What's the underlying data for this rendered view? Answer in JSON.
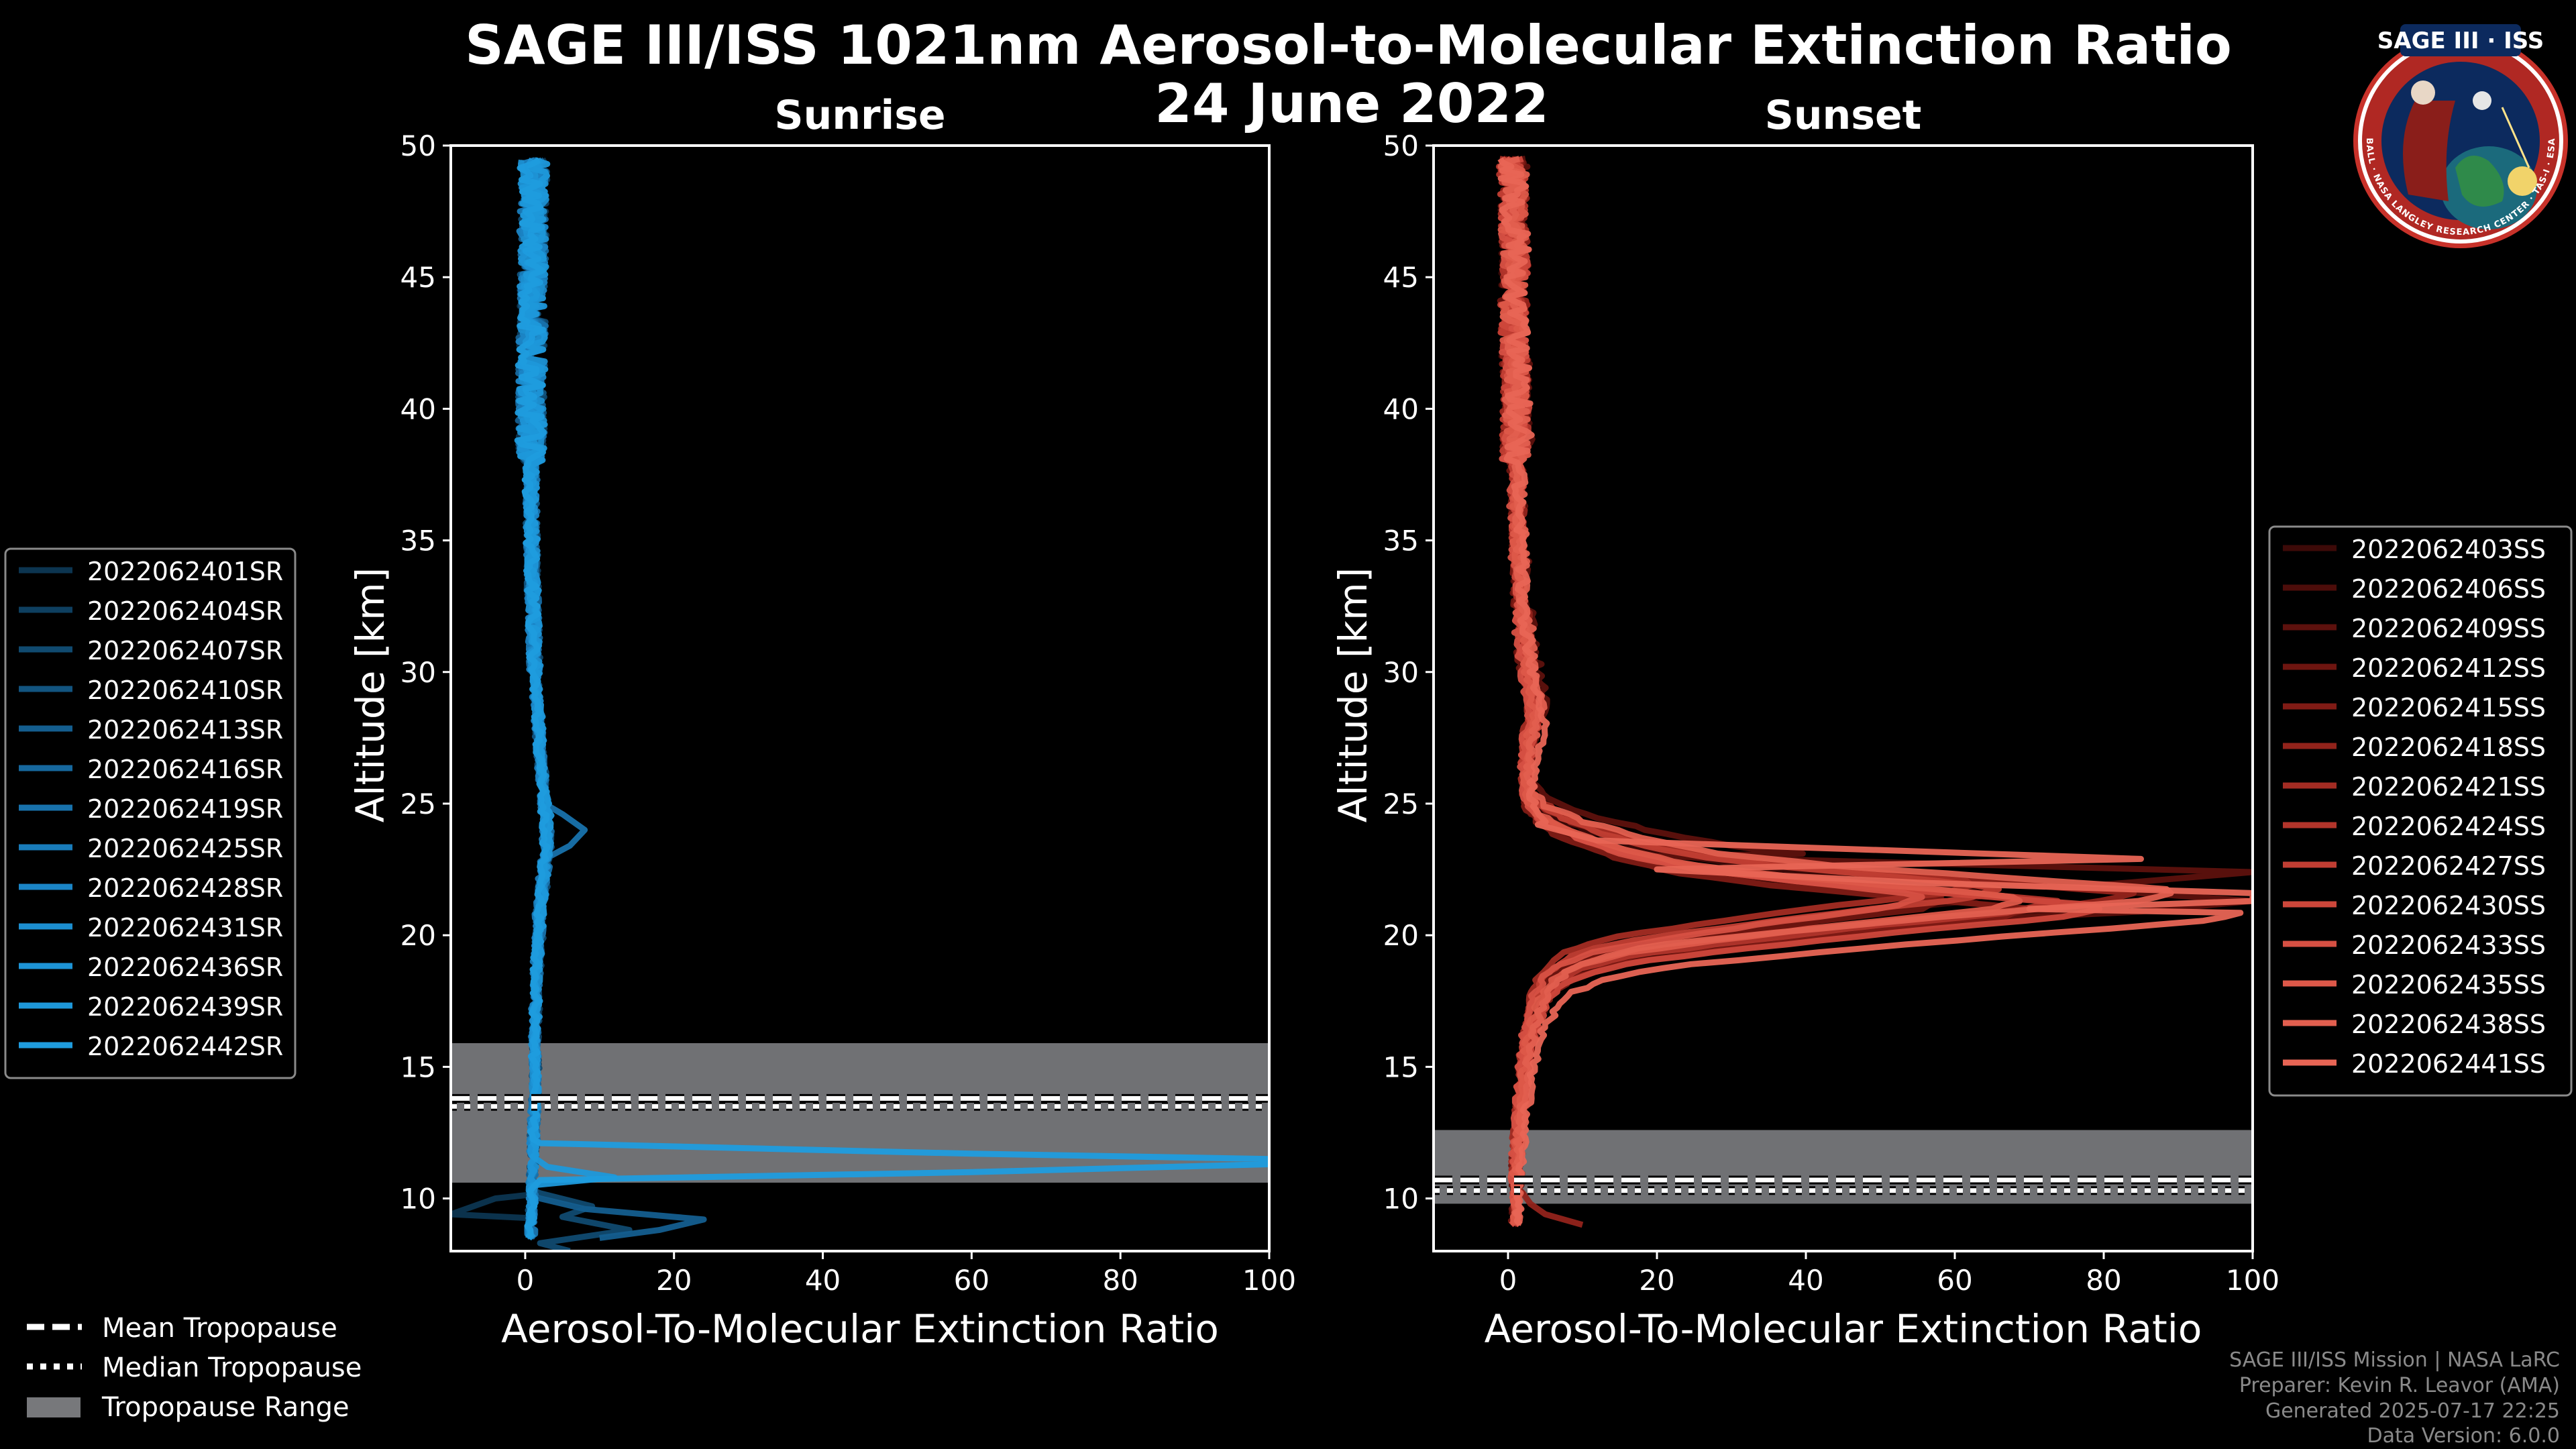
{
  "figure": {
    "title": "SAGE III/ISS 1021nm Aerosol-to-Molecular Extinction Ratio",
    "date": "24 June 2022",
    "logo": {
      "text": "SAGE III · ISS",
      "ring_text": "BALL · NASA LANGLEY RESEARCH CENTER · TAS-I · ESA"
    },
    "credits": [
      "SAGE III/ISS Mission | NASA LaRC",
      "Preparer: Kevin R. Leavor (AMA)",
      "Generated 2025-07-17 22:25",
      "Data Version: 6.0.0"
    ]
  },
  "tropopause_legend": [
    {
      "label": "Mean Tropopause",
      "style": "dashed"
    },
    {
      "label": "Median Tropopause",
      "style": "dotted"
    },
    {
      "label": "Tropopause Range",
      "style": "patch"
    }
  ],
  "chart_data": [
    {
      "type": "line",
      "title": "Sunrise",
      "xlabel": "Aerosol-To-Molecular Extinction Ratio",
      "ylabel": "Altitude [km]",
      "xlim": [
        -10,
        100
      ],
      "ylim": [
        8,
        50
      ],
      "xticks": [
        0,
        20,
        40,
        60,
        80,
        100
      ],
      "yticks": [
        10,
        15,
        20,
        25,
        30,
        35,
        40,
        45,
        50
      ],
      "tropopause": {
        "mean": 13.8,
        "median": 13.5,
        "range": [
          10.6,
          15.9
        ]
      },
      "base_color": "#1f8dd6",
      "profile_shape": {
        "altitude": [
          8.5,
          10,
          11,
          12,
          13,
          14,
          16,
          18,
          20,
          21,
          22,
          23,
          24,
          25,
          27,
          30,
          33,
          36,
          40,
          43,
          46,
          49.5
        ],
        "ratio": [
          0.8,
          0.9,
          1.0,
          1.1,
          1.2,
          1.3,
          1.3,
          1.5,
          1.8,
          2.0,
          2.4,
          2.8,
          3.0,
          2.6,
          2.0,
          1.3,
          1.0,
          0.8,
          0.8,
          0.9,
          1.0,
          1.2
        ]
      },
      "series": [
        {
          "name": "2022062401SR",
          "color": "#0c3550"
        },
        {
          "name": "2022062404SR",
          "color": "#0e3f60"
        },
        {
          "name": "2022062407SR",
          "color": "#104a70"
        },
        {
          "name": "2022062410SR",
          "color": "#12547f"
        },
        {
          "name": "2022062413SR",
          "color": "#145e8f"
        },
        {
          "name": "2022062416SR",
          "color": "#16689e"
        },
        {
          "name": "2022062419SR",
          "color": "#1872ac"
        },
        {
          "name": "2022062425SR",
          "color": "#197cba"
        },
        {
          "name": "2022062428SR",
          "color": "#1b85c6"
        },
        {
          "name": "2022062431SR",
          "color": "#1c8ecf"
        },
        {
          "name": "2022062436SR",
          "color": "#1d94d6"
        },
        {
          "name": "2022062439SR",
          "color": "#1e98da"
        },
        {
          "name": "2022062442SR",
          "color": "#1f9cde"
        }
      ],
      "features": [
        {
          "series": 12,
          "altitude": [
            10.4,
            10.7,
            11.0,
            11.3,
            11.5,
            11.7,
            12.1
          ],
          "ratio": [
            1,
            2,
            60,
            100,
            100,
            60,
            2
          ]
        },
        {
          "series": 11,
          "altitude": [
            10.5,
            10.8,
            11.2,
            11.6
          ],
          "ratio": [
            1,
            12,
            3,
            1
          ]
        },
        {
          "series": 4,
          "altitude": [
            8.5,
            8.8,
            9.2,
            9.6,
            10.0
          ],
          "ratio": [
            10,
            18,
            24,
            8,
            2
          ]
        },
        {
          "series": 2,
          "altitude": [
            8.0,
            8.3,
            8.8,
            9.3,
            9.7,
            10.2
          ],
          "ratio": [
            6,
            2,
            14,
            5,
            9,
            2
          ]
        },
        {
          "series": 0,
          "altitude": [
            9.4,
            9.8,
            10.0
          ],
          "ratio": [
            -10,
            -6,
            -4
          ]
        },
        {
          "series": 6,
          "altitude": [
            22.8,
            23.4,
            24.0,
            24.6,
            25.1
          ],
          "ratio": [
            2,
            6,
            8,
            5,
            2
          ]
        }
      ]
    },
    {
      "type": "line",
      "title": "Sunset",
      "xlabel": "Aerosol-To-Molecular Extinction Ratio",
      "ylabel": "Altitude [km]",
      "xlim": [
        -10,
        100
      ],
      "ylim": [
        8,
        50
      ],
      "xticks": [
        0,
        20,
        40,
        60,
        80,
        100
      ],
      "yticks": [
        10,
        15,
        20,
        25,
        30,
        35,
        40,
        45,
        50
      ],
      "tropopause": {
        "mean": 10.7,
        "median": 10.3,
        "range": [
          9.8,
          12.6
        ]
      },
      "base_color": "#e8604e",
      "profile_shape": {
        "altitude": [
          9.0,
          10,
          11,
          12,
          13,
          14,
          15,
          16,
          17,
          17.7,
          18.3,
          18.8,
          19.3,
          19.8,
          20.4,
          21.0,
          21.4,
          21.8,
          22.3,
          22.8,
          23.4,
          24.0,
          24.6,
          25.2,
          26.0,
          27.0,
          28.5,
          30,
          33,
          36,
          40,
          43,
          46,
          49.5
        ],
        "ratio": [
          1.0,
          1.0,
          1.0,
          1.2,
          1.5,
          1.8,
          2.2,
          2.7,
          3.5,
          4.5,
          6,
          9,
          15,
          28,
          45,
          65,
          70,
          55,
          35,
          22,
          14,
          8,
          4,
          2.5,
          2.2,
          2.5,
          3.5,
          2.5,
          1.5,
          1.2,
          1.0,
          0.8,
          0.8,
          0.5
        ]
      },
      "series": [
        {
          "name": "2022062403SS",
          "color": "#3d0a08",
          "scale": 0.95,
          "shift": 0.3
        },
        {
          "name": "2022062406SS",
          "color": "#4d0d0a",
          "scale": 1.1,
          "shift": -0.2
        },
        {
          "name": "2022062409SS",
          "color": "#5d110d",
          "scale": 1.45,
          "shift": 0.5
        },
        {
          "name": "2022062412SS",
          "color": "#6e1510",
          "scale": 0.85,
          "shift": 0.0
        },
        {
          "name": "2022062415SS",
          "color": "#801b15",
          "scale": 1.0,
          "shift": -0.4
        },
        {
          "name": "2022062418SS",
          "color": "#92231b",
          "scale": 1.2,
          "shift": 0.2
        },
        {
          "name": "2022062421SS",
          "color": "#a32c23",
          "scale": 0.9,
          "shift": 0.6
        },
        {
          "name": "2022062424SS",
          "color": "#b3352b",
          "scale": 1.05,
          "shift": -0.1
        },
        {
          "name": "2022062427SS",
          "color": "#c13e33",
          "scale": 0.95,
          "shift": 0.4
        },
        {
          "name": "2022062430SS",
          "color": "#cd473b",
          "scale": 1.15,
          "shift": -0.3
        },
        {
          "name": "2022062433SS",
          "color": "#d65043",
          "scale": 0.8,
          "shift": 0.1
        },
        {
          "name": "2022062435SS",
          "color": "#dd5849",
          "scale": 1.0,
          "shift": 0.0
        },
        {
          "name": "2022062438SS",
          "color": "#e25f4f",
          "scale": 1.3,
          "shift": 0.3
        },
        {
          "name": "2022062441SS",
          "color": "#e86555",
          "scale": 1.42,
          "shift": -0.5
        }
      ],
      "features": [
        {
          "series": 13,
          "altitude": [
            21.0,
            21.3,
            21.6,
            22.0,
            22.5,
            22.9,
            23.6,
            24.2
          ],
          "ratio": [
            70,
            100,
            100,
            55,
            20,
            85,
            12,
            4
          ]
        },
        {
          "series": 2,
          "altitude": [
            20.4,
            20.9,
            21.3,
            21.8,
            22.4,
            23.0
          ],
          "ratio": [
            50,
            85,
            100,
            75,
            100,
            20
          ]
        },
        {
          "series": 5,
          "altitude": [
            9.0,
            9.4,
            9.8,
            10.2,
            10.5
          ],
          "ratio": [
            10,
            5,
            3,
            2,
            1
          ]
        }
      ]
    }
  ]
}
